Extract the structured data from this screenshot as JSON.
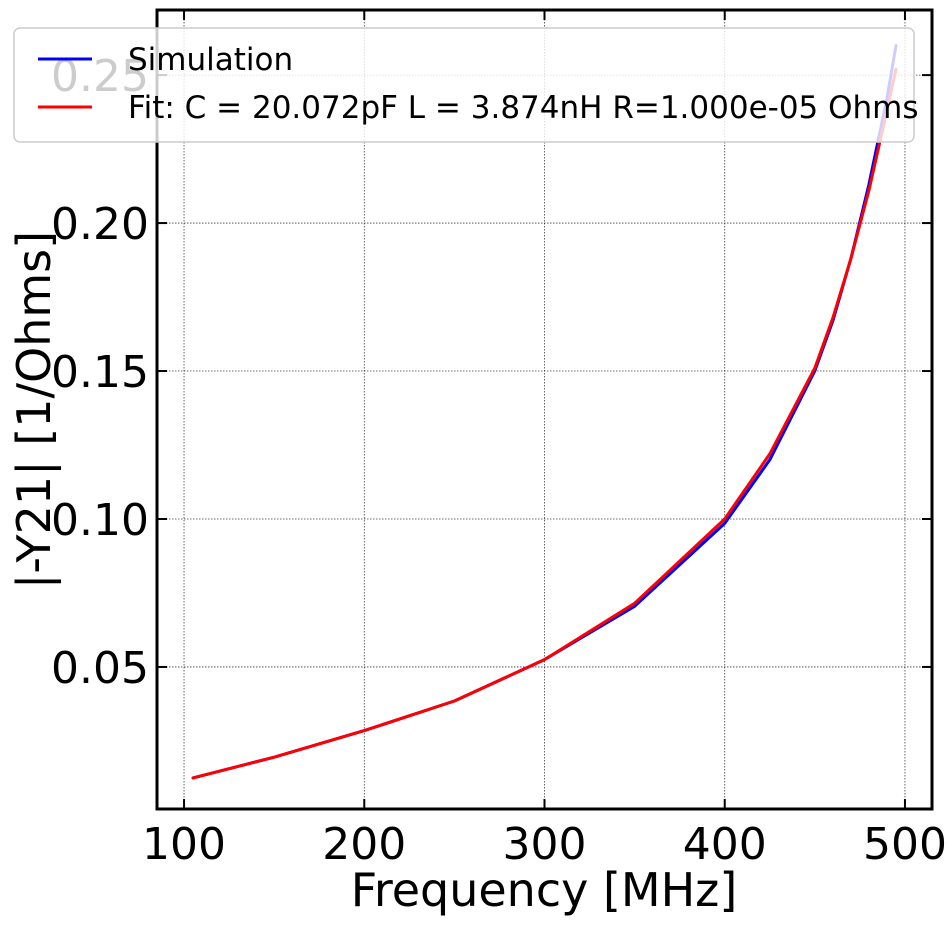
{
  "chart_data": {
    "type": "line",
    "title": "",
    "xlabel": "Frequency [MHz]",
    "ylabel": "|-Y21| [1/Ohms]",
    "xlim": [
      85,
      515
    ],
    "ylim": [
      0.002,
      0.272
    ],
    "x_ticks": [
      100,
      200,
      300,
      400,
      500
    ],
    "y_ticks": [
      0.05,
      0.1,
      0.15,
      0.2,
      0.25
    ],
    "x_tick_labels": [
      "100",
      "200",
      "300",
      "400",
      "500"
    ],
    "y_tick_labels": [
      "0.05",
      "0.10",
      "0.15",
      "0.20",
      "0.25"
    ],
    "grid": true,
    "legend_position": "top",
    "series": [
      {
        "name": "Simulation",
        "color": "#0000ff",
        "x": [
          105,
          150,
          200,
          250,
          300,
          350,
          400,
          425,
          450,
          460,
          470,
          480,
          490,
          495
        ],
        "y": [
          0.0125,
          0.0195,
          0.0285,
          0.0385,
          0.0525,
          0.0705,
          0.0985,
          0.12,
          0.15,
          0.167,
          0.188,
          0.213,
          0.242,
          0.26
        ]
      },
      {
        "name": "Fit: C = 20.072pF L = 3.874nH R=1.000e-05 Ohms",
        "color": "#ff0000",
        "x": [
          105,
          150,
          200,
          250,
          300,
          350,
          400,
          425,
          450,
          460,
          470,
          480,
          490,
          495
        ],
        "y": [
          0.0125,
          0.0195,
          0.0285,
          0.0385,
          0.0525,
          0.0715,
          0.1,
          0.122,
          0.151,
          0.168,
          0.188,
          0.211,
          0.238,
          0.252
        ]
      }
    ]
  }
}
